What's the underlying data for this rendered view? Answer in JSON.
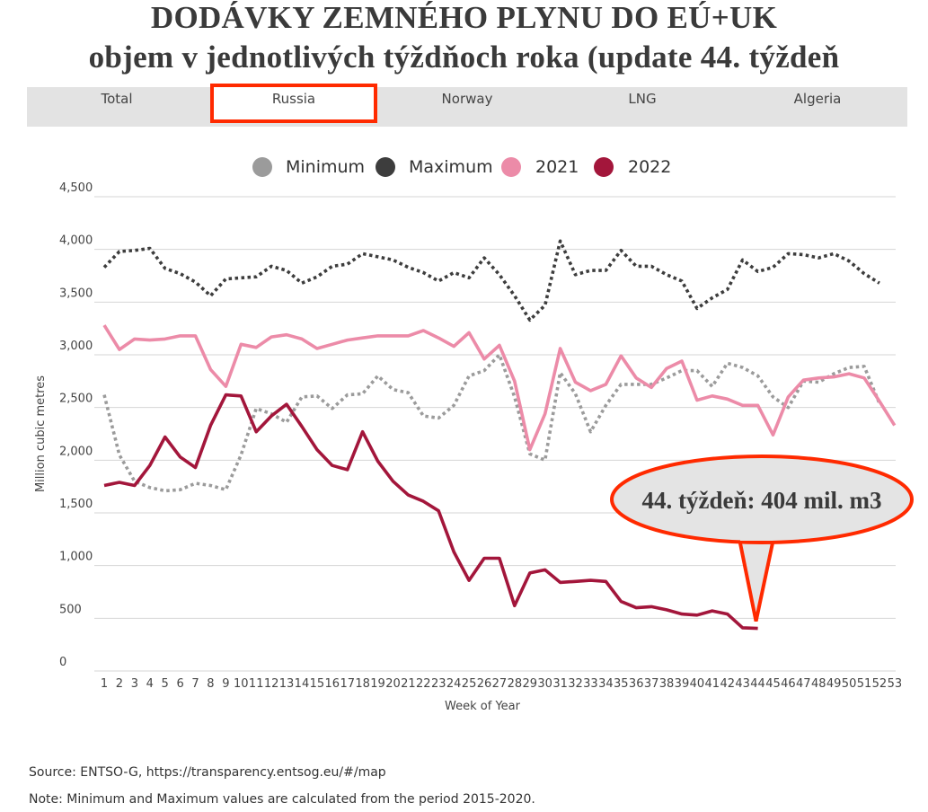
{
  "title": {
    "line1": "DODÁVKY ZEMNÉHO PLYNU DO EÚ+UK",
    "line2": "objem v jednotlivých týždňoch roka (update 44. týždeň"
  },
  "tabs": [
    {
      "label": "Total",
      "active": false
    },
    {
      "label": "Russia",
      "active": true
    },
    {
      "label": "Norway",
      "active": false
    },
    {
      "label": "LNG",
      "active": false
    },
    {
      "label": "Algeria",
      "active": false
    }
  ],
  "colors": {
    "minimum": "#9b9b9b",
    "maximum": "#3d3d3d",
    "y2021": "#ec8ba8",
    "y2022": "#a3163b",
    "highlight": "#ff2a00",
    "callout_fill": "#e4e4e4"
  },
  "callout": {
    "text": "44. týždeň: 404 mil. m3"
  },
  "footer": {
    "source": "Source: ENTSO-G,  https://transparency.entsog.eu/#/map",
    "note": "Note: Minimum and Maximum values are calculated from the period 2015-2020."
  },
  "chart_data": {
    "type": "line",
    "xlabel": "Week of Year",
    "ylabel": "Million cubic metres",
    "ylim": [
      0,
      4500
    ],
    "yticks": [
      0,
      500,
      1000,
      1500,
      2000,
      2500,
      3000,
      3500,
      4000,
      4500
    ],
    "ytick_labels": [
      "0",
      "500",
      "1,000",
      "1,500",
      "2,000",
      "2,500",
      "3,000",
      "3,500",
      "4,000",
      "4,500"
    ],
    "x": [
      1,
      2,
      3,
      4,
      5,
      6,
      7,
      8,
      9,
      10,
      11,
      12,
      13,
      14,
      15,
      16,
      17,
      18,
      19,
      20,
      21,
      22,
      23,
      24,
      25,
      26,
      27,
      28,
      29,
      30,
      31,
      32,
      33,
      34,
      35,
      36,
      37,
      38,
      39,
      40,
      41,
      42,
      43,
      44,
      45,
      46,
      47,
      48,
      49,
      50,
      51,
      52,
      53
    ],
    "grid": "horizontal",
    "legend_position": "top",
    "series": [
      {
        "name": "Minimum",
        "style": "dotted",
        "values": [
          2620,
          2050,
          1800,
          1740,
          1710,
          1720,
          1780,
          1760,
          1720,
          2050,
          2490,
          2440,
          2360,
          2600,
          2610,
          2490,
          2620,
          2630,
          2800,
          2670,
          2640,
          2420,
          2400,
          2520,
          2800,
          2850,
          3000,
          2600,
          2060,
          2000,
          2830,
          2630,
          2270,
          2520,
          2720,
          2720,
          2720,
          2780,
          2850,
          2850,
          2700,
          2920,
          2880,
          2800,
          2600,
          2500,
          2750,
          2740,
          2820,
          2880,
          2890,
          2540,
          null
        ]
      },
      {
        "name": "Maximum",
        "style": "dotted",
        "values": [
          3830,
          3980,
          3990,
          4010,
          3820,
          3770,
          3690,
          3560,
          3720,
          3730,
          3740,
          3840,
          3800,
          3680,
          3740,
          3840,
          3860,
          3960,
          3930,
          3900,
          3830,
          3780,
          3700,
          3780,
          3730,
          3920,
          3760,
          3560,
          3330,
          3470,
          4080,
          3760,
          3800,
          3800,
          3990,
          3840,
          3840,
          3760,
          3700,
          3440,
          3540,
          3620,
          3900,
          3790,
          3830,
          3960,
          3950,
          3920,
          3960,
          3890,
          3770,
          3680,
          null
        ]
      },
      {
        "name": "2021",
        "style": "solid",
        "values": [
          3280,
          3050,
          3150,
          3140,
          3150,
          3180,
          3180,
          2860,
          2700,
          3100,
          3070,
          3170,
          3190,
          3150,
          3060,
          3100,
          3140,
          3160,
          3180,
          3180,
          3180,
          3230,
          3160,
          3080,
          3210,
          2960,
          3090,
          2750,
          2100,
          2440,
          3060,
          2740,
          2660,
          2720,
          2990,
          2780,
          2690,
          2870,
          2940,
          2570,
          2610,
          2580,
          2520,
          2520,
          2240,
          2600,
          2760,
          2780,
          2790,
          2820,
          2780,
          2560,
          2330
        ]
      },
      {
        "name": "2022",
        "style": "solid",
        "values": [
          1760,
          1790,
          1760,
          1950,
          2220,
          2030,
          1930,
          2330,
          2620,
          2610,
          2270,
          2420,
          2530,
          2320,
          2100,
          1950,
          1910,
          2270,
          1990,
          1800,
          1670,
          1610,
          1520,
          1130,
          860,
          1070,
          1070,
          620,
          930,
          960,
          840,
          850,
          860,
          850,
          660,
          600,
          610,
          580,
          540,
          530,
          570,
          540,
          410,
          404,
          null,
          null,
          null,
          null,
          null,
          null,
          null,
          null,
          null
        ]
      }
    ]
  }
}
